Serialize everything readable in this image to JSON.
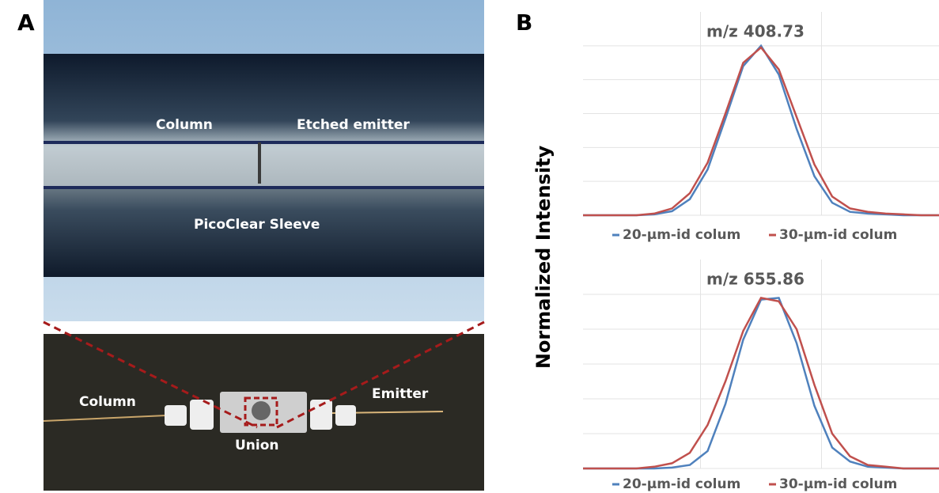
{
  "panel_labels": {
    "a": "A",
    "b": "B"
  },
  "photo_top": {
    "column": "Column",
    "emitter": "Etched emitter",
    "sleeve": "PicoClear Sleeve"
  },
  "photo_bottom": {
    "column": "Column",
    "emitter": "Emitter",
    "union": "Union"
  },
  "y_label": "Normalized Intensity",
  "chart_data": [
    {
      "type": "line",
      "title": "m/z 408.73",
      "x": [
        0,
        5,
        10,
        15,
        20,
        25,
        30,
        35,
        40,
        45,
        50,
        55,
        60,
        65,
        70,
        75,
        80,
        85,
        90,
        95,
        100
      ],
      "series": [
        {
          "name": "20-µm-id colum",
          "color": "#4f81bd",
          "values": [
            0,
            0,
            0,
            0,
            0.005,
            0.024,
            0.095,
            0.27,
            0.57,
            0.88,
            1.0,
            0.83,
            0.51,
            0.23,
            0.074,
            0.02,
            0.01,
            0.005,
            0,
            0,
            0
          ]
        },
        {
          "name": "30-µm-id colum",
          "color": "#c0504d",
          "values": [
            0,
            0,
            0,
            0,
            0.01,
            0.04,
            0.13,
            0.31,
            0.6,
            0.9,
            0.99,
            0.86,
            0.58,
            0.3,
            0.11,
            0.04,
            0.02,
            0.01,
            0.005,
            0,
            0
          ]
        }
      ],
      "xlim": [
        0,
        100
      ],
      "ylim": [
        0,
        1.2
      ],
      "xticks": [
        33,
        67
      ],
      "yticks": [
        0,
        0.2,
        0.4,
        0.6,
        0.8,
        1.0
      ],
      "grid": true
    },
    {
      "type": "line",
      "title": "m/z 655.86",
      "x": [
        0,
        5,
        10,
        15,
        20,
        25,
        30,
        35,
        40,
        45,
        50,
        55,
        60,
        65,
        70,
        75,
        80,
        85,
        90,
        95,
        100
      ],
      "series": [
        {
          "name": "20-µm-id colum",
          "color": "#4f81bd",
          "values": [
            0,
            0,
            0,
            0,
            0,
            0.005,
            0.02,
            0.1,
            0.37,
            0.74,
            0.97,
            0.98,
            0.72,
            0.36,
            0.12,
            0.04,
            0.01,
            0.005,
            0,
            0,
            0
          ]
        },
        {
          "name": "30-µm-id colum",
          "color": "#c0504d",
          "values": [
            0,
            0,
            0,
            0,
            0.01,
            0.03,
            0.09,
            0.25,
            0.5,
            0.79,
            0.98,
            0.96,
            0.8,
            0.48,
            0.2,
            0.07,
            0.02,
            0.01,
            0,
            0,
            0
          ]
        }
      ],
      "xlim": [
        0,
        100
      ],
      "ylim": [
        0,
        1.2
      ],
      "xticks": [
        33,
        67
      ],
      "yticks": [
        0,
        0.2,
        0.4,
        0.6,
        0.8,
        1.0
      ],
      "grid": true
    }
  ]
}
